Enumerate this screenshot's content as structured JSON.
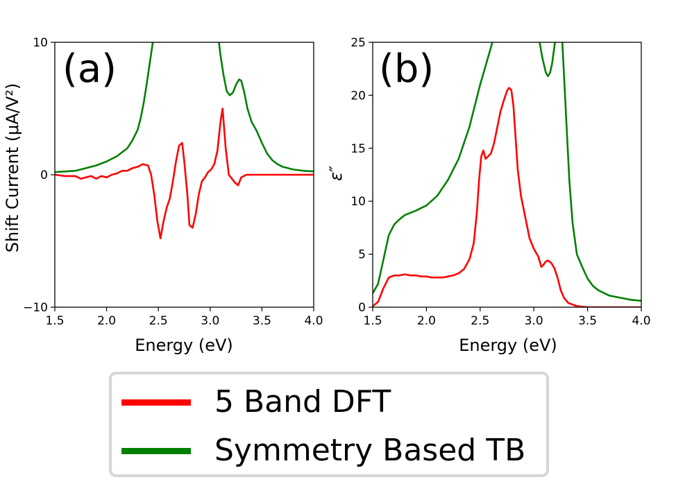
{
  "chart_data": [
    {
      "type": "line",
      "panel_label": "(a)",
      "xlabel": "Energy (eV)",
      "ylabel": "Shift Current (μA/V²)",
      "xlim": [
        1.5,
        4.0
      ],
      "ylim": [
        -10,
        10
      ],
      "xticks": [
        1.5,
        2.0,
        2.5,
        3.0,
        3.5,
        4.0
      ],
      "xtick_labels": [
        "1.5",
        "2.0",
        "2.5",
        "3.0",
        "3.5",
        "4.0"
      ],
      "yticks": [
        -10,
        0,
        10
      ],
      "ytick_labels": [
        "−10",
        "0",
        "10"
      ],
      "series": [
        {
          "name": "5 Band DFT",
          "color": "#ff0000",
          "x": [
            1.5,
            1.6,
            1.7,
            1.75,
            1.8,
            1.85,
            1.9,
            1.95,
            2.0,
            2.05,
            2.1,
            2.15,
            2.2,
            2.25,
            2.3,
            2.35,
            2.4,
            2.43,
            2.46,
            2.49,
            2.52,
            2.55,
            2.58,
            2.61,
            2.64,
            2.67,
            2.7,
            2.73,
            2.75,
            2.78,
            2.8,
            2.83,
            2.86,
            2.89,
            2.92,
            2.95,
            2.98,
            3.01,
            3.04,
            3.07,
            3.1,
            3.12,
            3.15,
            3.18,
            3.21,
            3.24,
            3.27,
            3.3,
            3.35,
            3.5,
            3.7,
            4.0
          ],
          "y": [
            0.0,
            -0.1,
            -0.1,
            -0.3,
            -0.2,
            -0.1,
            -0.3,
            -0.1,
            -0.2,
            0.0,
            0.1,
            0.3,
            0.3,
            0.5,
            0.6,
            0.8,
            0.7,
            0.0,
            -1.5,
            -3.5,
            -4.8,
            -3.5,
            -2.5,
            -1.8,
            -0.5,
            1.0,
            2.2,
            2.4,
            1.0,
            -1.5,
            -3.8,
            -4.0,
            -3.0,
            -1.5,
            -0.5,
            -0.2,
            0.2,
            0.4,
            0.8,
            1.8,
            4.0,
            5.0,
            2.0,
            0.0,
            -0.3,
            -0.6,
            -0.8,
            -0.2,
            0.0,
            0.0,
            0.0,
            0.0
          ]
        },
        {
          "name": "Symmetry Based TB",
          "color": "#008000",
          "x": [
            1.5,
            1.7,
            1.8,
            1.9,
            2.0,
            2.1,
            2.2,
            2.25,
            2.3,
            2.33,
            2.36,
            2.39,
            2.42,
            2.45,
            2.5,
            2.7,
            2.9,
            3.06,
            3.08,
            3.1,
            3.13,
            3.16,
            3.19,
            3.22,
            3.25,
            3.28,
            3.3,
            3.33,
            3.36,
            3.4,
            3.45,
            3.5,
            3.55,
            3.6,
            3.65,
            3.7,
            3.8,
            3.9,
            4.0
          ],
          "y": [
            0.2,
            0.3,
            0.5,
            0.7,
            1.0,
            1.4,
            2.0,
            2.6,
            3.4,
            4.3,
            5.5,
            7.0,
            8.6,
            10.2,
            12.5,
            20.0,
            20.0,
            12.0,
            10.3,
            9.0,
            7.5,
            6.3,
            6.0,
            6.2,
            6.8,
            7.2,
            7.1,
            6.2,
            5.0,
            4.0,
            3.3,
            2.4,
            1.6,
            1.1,
            0.8,
            0.6,
            0.4,
            0.3,
            0.25
          ]
        }
      ]
    },
    {
      "type": "line",
      "panel_label": "(b)",
      "xlabel": "Energy (eV)",
      "ylabel": "ε″",
      "xlim": [
        1.5,
        4.0
      ],
      "ylim": [
        0,
        25
      ],
      "xticks": [
        1.5,
        2.0,
        2.5,
        3.0,
        3.5,
        4.0
      ],
      "xtick_labels": [
        "1.5",
        "2.0",
        "2.5",
        "3.0",
        "3.5",
        "4.0"
      ],
      "yticks": [
        0,
        5,
        10,
        15,
        20,
        25
      ],
      "ytick_labels": [
        "0",
        "5",
        "10",
        "15",
        "20",
        "25"
      ],
      "series": [
        {
          "name": "5 Band DFT",
          "color": "#ff0000",
          "x": [
            1.5,
            1.55,
            1.6,
            1.65,
            1.7,
            1.75,
            1.8,
            1.85,
            1.9,
            1.95,
            2.0,
            2.05,
            2.1,
            2.15,
            2.2,
            2.25,
            2.3,
            2.35,
            2.4,
            2.44,
            2.47,
            2.49,
            2.51,
            2.53,
            2.55,
            2.57,
            2.6,
            2.63,
            2.66,
            2.69,
            2.72,
            2.75,
            2.77,
            2.79,
            2.81,
            2.83,
            2.85,
            2.88,
            2.92,
            2.96,
            3.0,
            3.04,
            3.07,
            3.09,
            3.11,
            3.13,
            3.16,
            3.19,
            3.22,
            3.25,
            3.28,
            3.32,
            3.4,
            3.5,
            3.7,
            4.0
          ],
          "y": [
            0.1,
            0.5,
            1.8,
            2.8,
            3.0,
            3.0,
            3.1,
            3.0,
            3.0,
            2.9,
            2.9,
            2.8,
            2.8,
            2.8,
            2.9,
            3.0,
            3.2,
            3.6,
            4.5,
            6.0,
            9.0,
            12.0,
            14.2,
            14.8,
            14.0,
            14.2,
            14.5,
            15.5,
            17.0,
            18.5,
            19.5,
            20.4,
            20.7,
            20.5,
            19.0,
            16.0,
            13.0,
            10.5,
            8.5,
            6.5,
            5.5,
            4.8,
            3.8,
            4.0,
            4.3,
            4.4,
            4.2,
            3.7,
            2.8,
            1.6,
            0.9,
            0.4,
            0.1,
            0.0,
            0.0,
            0.0
          ]
        },
        {
          "name": "Symmetry Based TB",
          "color": "#008000",
          "x": [
            1.5,
            1.55,
            1.6,
            1.65,
            1.7,
            1.75,
            1.8,
            1.9,
            2.0,
            2.1,
            2.2,
            2.3,
            2.4,
            2.5,
            2.6,
            2.64,
            2.7,
            2.9,
            3.0,
            3.05,
            3.08,
            3.11,
            3.13,
            3.15,
            3.17,
            3.19,
            3.21,
            3.24,
            3.27,
            3.3,
            3.33,
            3.36,
            3.4,
            3.45,
            3.5,
            3.55,
            3.6,
            3.7,
            3.8,
            3.9,
            4.0
          ],
          "y": [
            1.3,
            2.2,
            4.5,
            6.8,
            7.8,
            8.3,
            8.7,
            9.1,
            9.6,
            10.5,
            12.0,
            14.0,
            17.0,
            21.0,
            24.5,
            26.0,
            30.0,
            30.0,
            26.0,
            25.2,
            23.5,
            22.2,
            21.8,
            22.1,
            23.0,
            24.5,
            26.0,
            30.0,
            24.0,
            18.0,
            12.0,
            8.0,
            5.0,
            3.8,
            2.7,
            2.0,
            1.6,
            1.1,
            0.9,
            0.7,
            0.6
          ]
        }
      ]
    }
  ],
  "legend": {
    "items": [
      {
        "label": "5 Band DFT",
        "color": "#ff0000"
      },
      {
        "label": "Symmetry Based TB",
        "color": "#008000"
      }
    ]
  }
}
